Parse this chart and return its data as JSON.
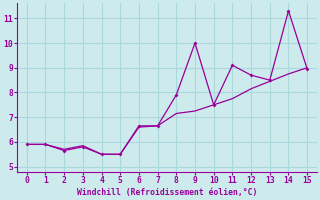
{
  "xlabel": "Windchill (Refroidissement éolien,°C)",
  "x": [
    0,
    1,
    2,
    3,
    4,
    5,
    6,
    7,
    8,
    9,
    10,
    11,
    12,
    13,
    14,
    15
  ],
  "y_line": [
    5.9,
    5.9,
    5.7,
    5.85,
    5.5,
    5.5,
    6.6,
    6.65,
    7.15,
    7.25,
    7.5,
    7.75,
    8.15,
    8.45,
    8.75,
    9.0
  ],
  "y_scatter": [
    5.9,
    5.9,
    5.65,
    5.8,
    5.5,
    5.5,
    6.65,
    6.65,
    7.9,
    10.0,
    7.5,
    9.1,
    8.7,
    8.5,
    11.3,
    8.95
  ],
  "line_color": "#990099",
  "scatter_color": "#990099",
  "bg_color": "#cdeaed",
  "grid_color": "#aad8dc",
  "label_color": "#990099",
  "tick_color": "#990099",
  "spine_color": "#990099",
  "xlim": [
    -0.5,
    15.5
  ],
  "ylim": [
    4.8,
    11.6
  ],
  "yticks": [
    5,
    6,
    7,
    8,
    9,
    10,
    11
  ],
  "xticks": [
    0,
    1,
    2,
    3,
    4,
    5,
    6,
    7,
    8,
    9,
    10,
    11,
    12,
    13,
    14,
    15
  ]
}
